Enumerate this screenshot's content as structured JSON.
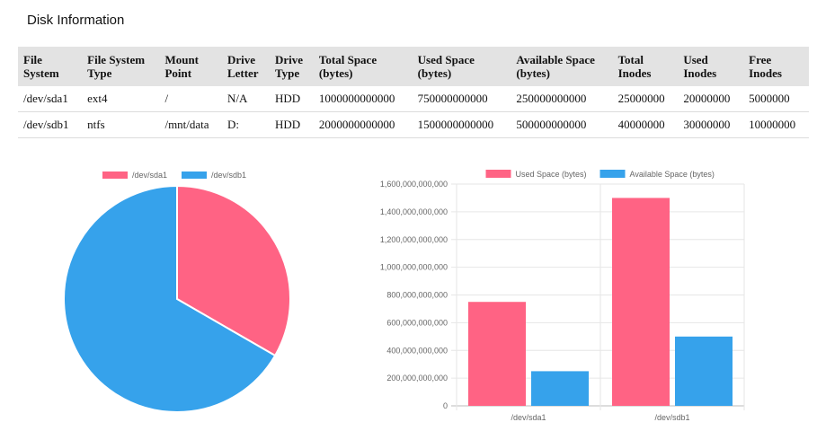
{
  "page": {
    "title": "Disk Information"
  },
  "table": {
    "headers": [
      [
        "File",
        "System"
      ],
      [
        "File System",
        "Type"
      ],
      [
        "Mount",
        "Point"
      ],
      [
        "Drive",
        "Letter"
      ],
      [
        "Drive",
        "Type"
      ],
      [
        "Total Space",
        "(bytes)"
      ],
      [
        "Used Space",
        "(bytes)"
      ],
      [
        "Available Space",
        "(bytes)"
      ],
      [
        "Total",
        "Inodes"
      ],
      [
        "Used",
        "Inodes"
      ],
      [
        "Free",
        "Inodes"
      ]
    ],
    "rows": [
      [
        "/dev/sda1",
        "ext4",
        "/",
        "N/A",
        "HDD",
        "1000000000000",
        "750000000000",
        "250000000000",
        "25000000",
        "20000000",
        "5000000"
      ],
      [
        "/dev/sdb1",
        "ntfs",
        "/mnt/data",
        "D:",
        "HDD",
        "2000000000000",
        "1500000000000",
        "500000000000",
        "40000000",
        "30000000",
        "10000000"
      ]
    ]
  },
  "chart_data": [
    {
      "type": "pie",
      "labels": [
        "/dev/sda1",
        "/dev/sdb1"
      ],
      "values": [
        1000000000000,
        2000000000000
      ],
      "colors": [
        "#ff6384",
        "#36a2eb"
      ],
      "legend": "top"
    },
    {
      "type": "bar",
      "categories": [
        "/dev/sda1",
        "/dev/sdb1"
      ],
      "series": [
        {
          "name": "Used Space (bytes)",
          "values": [
            750000000000,
            1500000000000
          ],
          "color": "#ff6384"
        },
        {
          "name": "Available Space (bytes)",
          "values": [
            250000000000,
            500000000000
          ],
          "color": "#36a2eb"
        }
      ],
      "ylim": [
        0,
        1600000000000
      ],
      "yticks": [
        "0",
        "200,000,000,000",
        "400,000,000,000",
        "600,000,000,000",
        "800,000,000,000",
        "1,000,000,000,000",
        "1,200,000,000,000",
        "1,400,000,000,000",
        "1,600,000,000,000"
      ],
      "grid": true,
      "legend": "top"
    }
  ]
}
